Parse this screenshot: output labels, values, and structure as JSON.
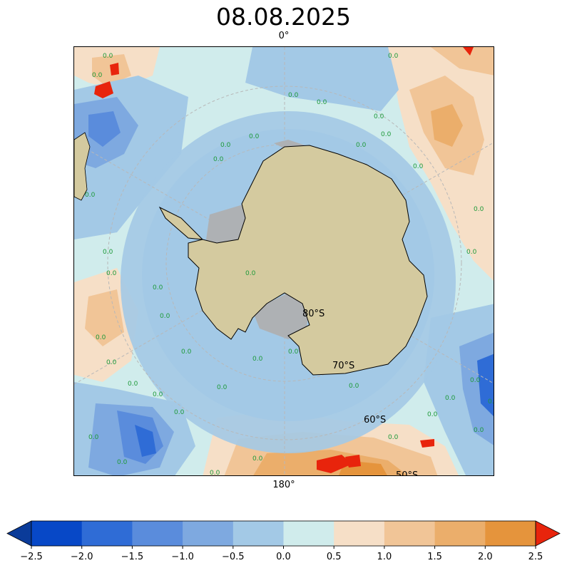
{
  "title": "08.08.2025",
  "longitude_labels": {
    "top": "0°",
    "bottom": "180°"
  },
  "latitude_labels": [
    "80°S",
    "70°S",
    "60°S",
    "50°S"
  ],
  "contour_label": "0.0",
  "colorbar": {
    "ticks": [
      "−2.5",
      "−2.0",
      "−1.5",
      "−1.0",
      "−0.5",
      "0.0",
      "0.5",
      "1.0",
      "1.5",
      "2.0",
      "2.5"
    ],
    "colors": [
      "#0a3b99",
      "#0748c7",
      "#2f6cd6",
      "#5a8cdc",
      "#7ea9e0",
      "#a3c9e6",
      "#d0ecec",
      "#f6dfc7",
      "#f1c597",
      "#ebae6b",
      "#e5943c",
      "#e8240c"
    ],
    "extend": "both"
  },
  "colors": {
    "land": "#d4ca9f",
    "ice_shelf": "#aeb1b4",
    "coast": "#000000",
    "contour_zero": "#1e9a3a",
    "grid": "#b8b8b8"
  }
}
